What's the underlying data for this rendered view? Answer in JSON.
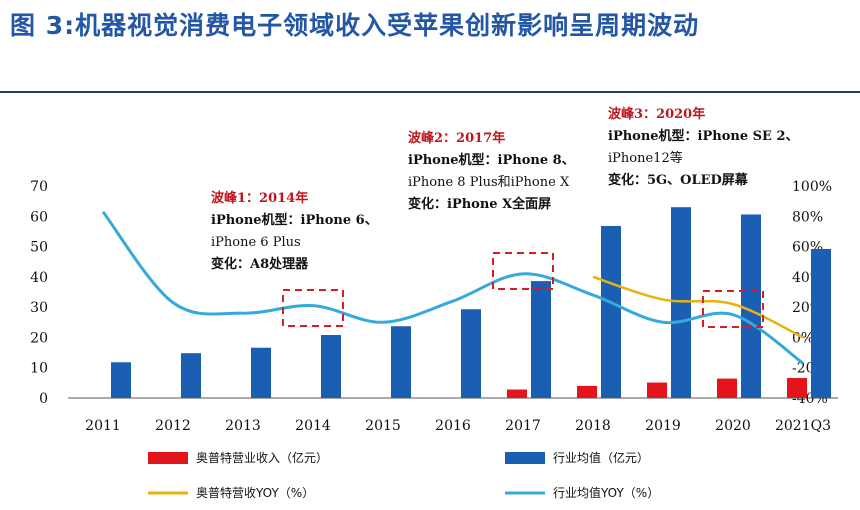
{
  "figure": {
    "title": "图 3:机器视觉消费电子领域收入受苹果创新影响呈周期波动"
  },
  "chart_data": {
    "type": "bar",
    "categories": [
      "2011",
      "2012",
      "2013",
      "2014",
      "2015",
      "2016",
      "2017",
      "2018",
      "2019",
      "2020",
      "2021Q3"
    ],
    "ylim": [
      0,
      70
    ],
    "y2lim": [
      -40,
      100
    ],
    "y_ticks": [
      "0",
      "10",
      "20",
      "30",
      "40",
      "50",
      "60",
      "70"
    ],
    "y2_ticks": [
      "-40%",
      "-20%",
      "0%",
      "20%",
      "40%",
      "60%",
      "80%",
      "100%"
    ],
    "series": [
      {
        "name": "奥普特营业收入（亿元）",
        "kind": "bar",
        "axis": "left",
        "color": "#e3141b",
        "values": [
          null,
          null,
          null,
          null,
          null,
          null,
          2.8,
          4.0,
          5.1,
          6.4,
          6.6
        ]
      },
      {
        "name": "行业均值（亿元）",
        "kind": "bar",
        "axis": "left",
        "color": "#1a5fb4",
        "values": [
          11.8,
          14.8,
          16.6,
          20.8,
          23.7,
          29.3,
          38.6,
          56.8,
          63.0,
          60.6,
          49.2
        ]
      },
      {
        "name": "奥普特营收YOY（%）",
        "kind": "line",
        "axis": "right",
        "color": "#e8b20c",
        "values": [
          null,
          null,
          null,
          null,
          null,
          null,
          null,
          40,
          25,
          22,
          0
        ]
      },
      {
        "name": "行业均值YOY（%）",
        "kind": "line",
        "axis": "right",
        "color": "#36a9dc",
        "values": [
          83,
          23,
          16,
          21,
          10,
          24,
          42,
          28,
          10,
          15,
          -17
        ]
      }
    ],
    "annotations": [
      {
        "category": "2014",
        "lines": [
          {
            "text": "波峰1：2014年",
            "style": "red"
          },
          {
            "text": "iPhone机型：iPhone 6、",
            "style": "bold-lead"
          },
          {
            "text": "iPhone 6 Plus",
            "style": "plain"
          },
          {
            "text": "变化：A8处理器",
            "style": "bold-lead"
          }
        ]
      },
      {
        "category": "2017",
        "lines": [
          {
            "text": "波峰2：2017年",
            "style": "red"
          },
          {
            "text": "iPhone机型：iPhone 8、",
            "style": "bold-lead"
          },
          {
            "text": "iPhone 8 Plus和iPhone X",
            "style": "plain"
          },
          {
            "text": "变化：iPhone X全面屏",
            "style": "bold-lead"
          }
        ]
      },
      {
        "category": "2020",
        "lines": [
          {
            "text": "波峰3：2020年",
            "style": "red"
          },
          {
            "text": "iPhone机型：iPhone SE 2、",
            "style": "bold-lead"
          },
          {
            "text": "iPhone12等",
            "style": "plain"
          },
          {
            "text": "变化：5G、OLED屏幕",
            "style": "bold-lead"
          }
        ]
      }
    ]
  }
}
